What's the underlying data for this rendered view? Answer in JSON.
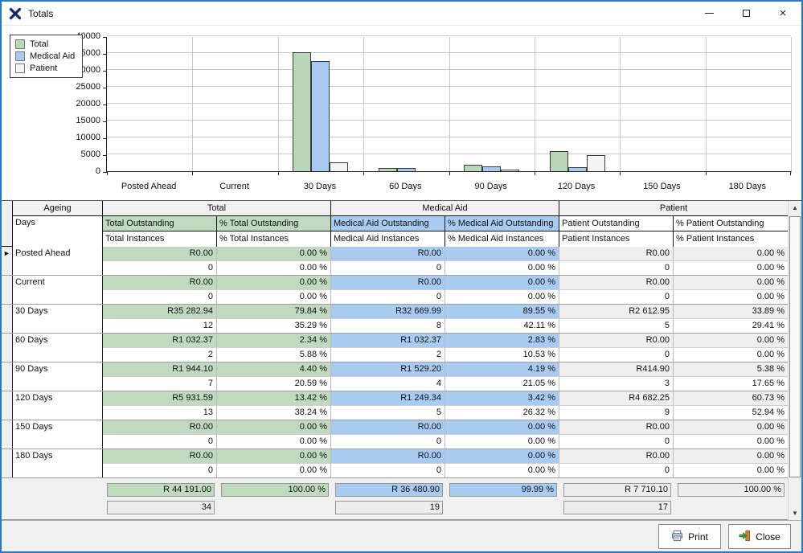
{
  "window": {
    "title": "Totals"
  },
  "icons": {
    "app": "blue-x-logo",
    "close": "×",
    "scroll_up": "▲",
    "scroll_down": "▼",
    "row_marker": "►"
  },
  "colors": {
    "accent": "#2579c5",
    "green": "#bfdabf",
    "blue": "#a8cbf2",
    "patient": "#efefef"
  },
  "chart_data": {
    "type": "bar",
    "categories": [
      "Posted Ahead",
      "Current",
      "30 Days",
      "60 Days",
      "90 Days",
      "120 Days",
      "150 Days",
      "180 Days"
    ],
    "series": [
      {
        "name": "Total",
        "color": "#b9d6b9",
        "values": [
          0,
          0,
          35282.94,
          1032.37,
          1944.1,
          5931.59,
          0,
          0
        ]
      },
      {
        "name": "Medical Aid",
        "color": "#a8caf1",
        "values": [
          0,
          0,
          32669.99,
          1032.37,
          1529.2,
          1249.34,
          0,
          0
        ]
      },
      {
        "name": "Patient",
        "color": "#f5f5f5",
        "values": [
          0,
          0,
          2612.95,
          0,
          414.9,
          4682.25,
          0,
          0
        ]
      }
    ],
    "title": "",
    "xlabel": "",
    "ylabel": "",
    "ylim": [
      0,
      40000
    ],
    "ytick_step": 5000,
    "grid": true,
    "legend_position": "top-left"
  },
  "grid": {
    "group_headers": [
      "Ageing",
      "Total",
      "Medical Aid",
      "Patient"
    ],
    "column_headers": {
      "ageing": "Days",
      "row1": [
        "Total Outstanding",
        "% Total Outstanding",
        "Medical Aid Outstanding",
        "% Medical Aid Outstanding",
        "Patient Outstanding",
        "% Patient Outstanding"
      ],
      "row2": [
        "Total Instances",
        "% Total Instances",
        "Medical Aid Instances",
        "% Medical Aid Instances",
        "Patient Instances",
        "% Patient Instances"
      ]
    },
    "rows": [
      {
        "ageing": "Posted Ahead",
        "outstanding": [
          "R0.00",
          "0.00 %",
          "R0.00",
          "0.00 %",
          "R0.00",
          "0.00 %"
        ],
        "instances": [
          "0",
          "0.00 %",
          "0",
          "0.00 %",
          "0",
          "0.00 %"
        ]
      },
      {
        "ageing": "Current",
        "outstanding": [
          "R0.00",
          "0.00 %",
          "R0.00",
          "0.00 %",
          "R0.00",
          "0.00 %"
        ],
        "instances": [
          "0",
          "0.00 %",
          "0",
          "0.00 %",
          "0",
          "0.00 %"
        ]
      },
      {
        "ageing": "30 Days",
        "outstanding": [
          "R35 282.94",
          "79.84 %",
          "R32 669.99",
          "89.55 %",
          "R2 612.95",
          "33.89 %"
        ],
        "instances": [
          "12",
          "35.29 %",
          "8",
          "42.11 %",
          "5",
          "29.41 %"
        ]
      },
      {
        "ageing": "60 Days",
        "outstanding": [
          "R1 032.37",
          "2.34 %",
          "R1 032.37",
          "2.83 %",
          "R0.00",
          "0.00 %"
        ],
        "instances": [
          "2",
          "5.88 %",
          "2",
          "10.53 %",
          "0",
          "0.00 %"
        ]
      },
      {
        "ageing": "90 Days",
        "outstanding": [
          "R1 944.10",
          "4.40 %",
          "R1 529.20",
          "4.19 %",
          "R414.90",
          "5.38 %"
        ],
        "instances": [
          "7",
          "20.59 %",
          "4",
          "21.05 %",
          "3",
          "17.65 %"
        ]
      },
      {
        "ageing": "120 Days",
        "outstanding": [
          "R5 931.59",
          "13.42 %",
          "R1 249.34",
          "3.42 %",
          "R4 682.25",
          "60.73 %"
        ],
        "instances": [
          "13",
          "38.24 %",
          "5",
          "26.32 %",
          "9",
          "52.94 %"
        ]
      },
      {
        "ageing": "150 Days",
        "outstanding": [
          "R0.00",
          "0.00 %",
          "R0.00",
          "0.00 %",
          "R0.00",
          "0.00 %"
        ],
        "instances": [
          "0",
          "0.00 %",
          "0",
          "0.00 %",
          "0",
          "0.00 %"
        ]
      },
      {
        "ageing": "180 Days",
        "outstanding": [
          "R0.00",
          "0.00 %",
          "R0.00",
          "0.00 %",
          "R0.00",
          "0.00 %"
        ],
        "instances": [
          "0",
          "0.00 %",
          "0",
          "0.00 %",
          "0",
          "0.00 %"
        ]
      }
    ],
    "totals": {
      "outstanding": [
        "R 44 191.00",
        "100.00 %",
        "R 36 480.90",
        "99.99 %",
        "R 7 710.10",
        "100.00 %"
      ],
      "instances": [
        "34",
        "19",
        "17"
      ]
    }
  },
  "footer": {
    "print_label": "Print",
    "close_label": "Close"
  }
}
